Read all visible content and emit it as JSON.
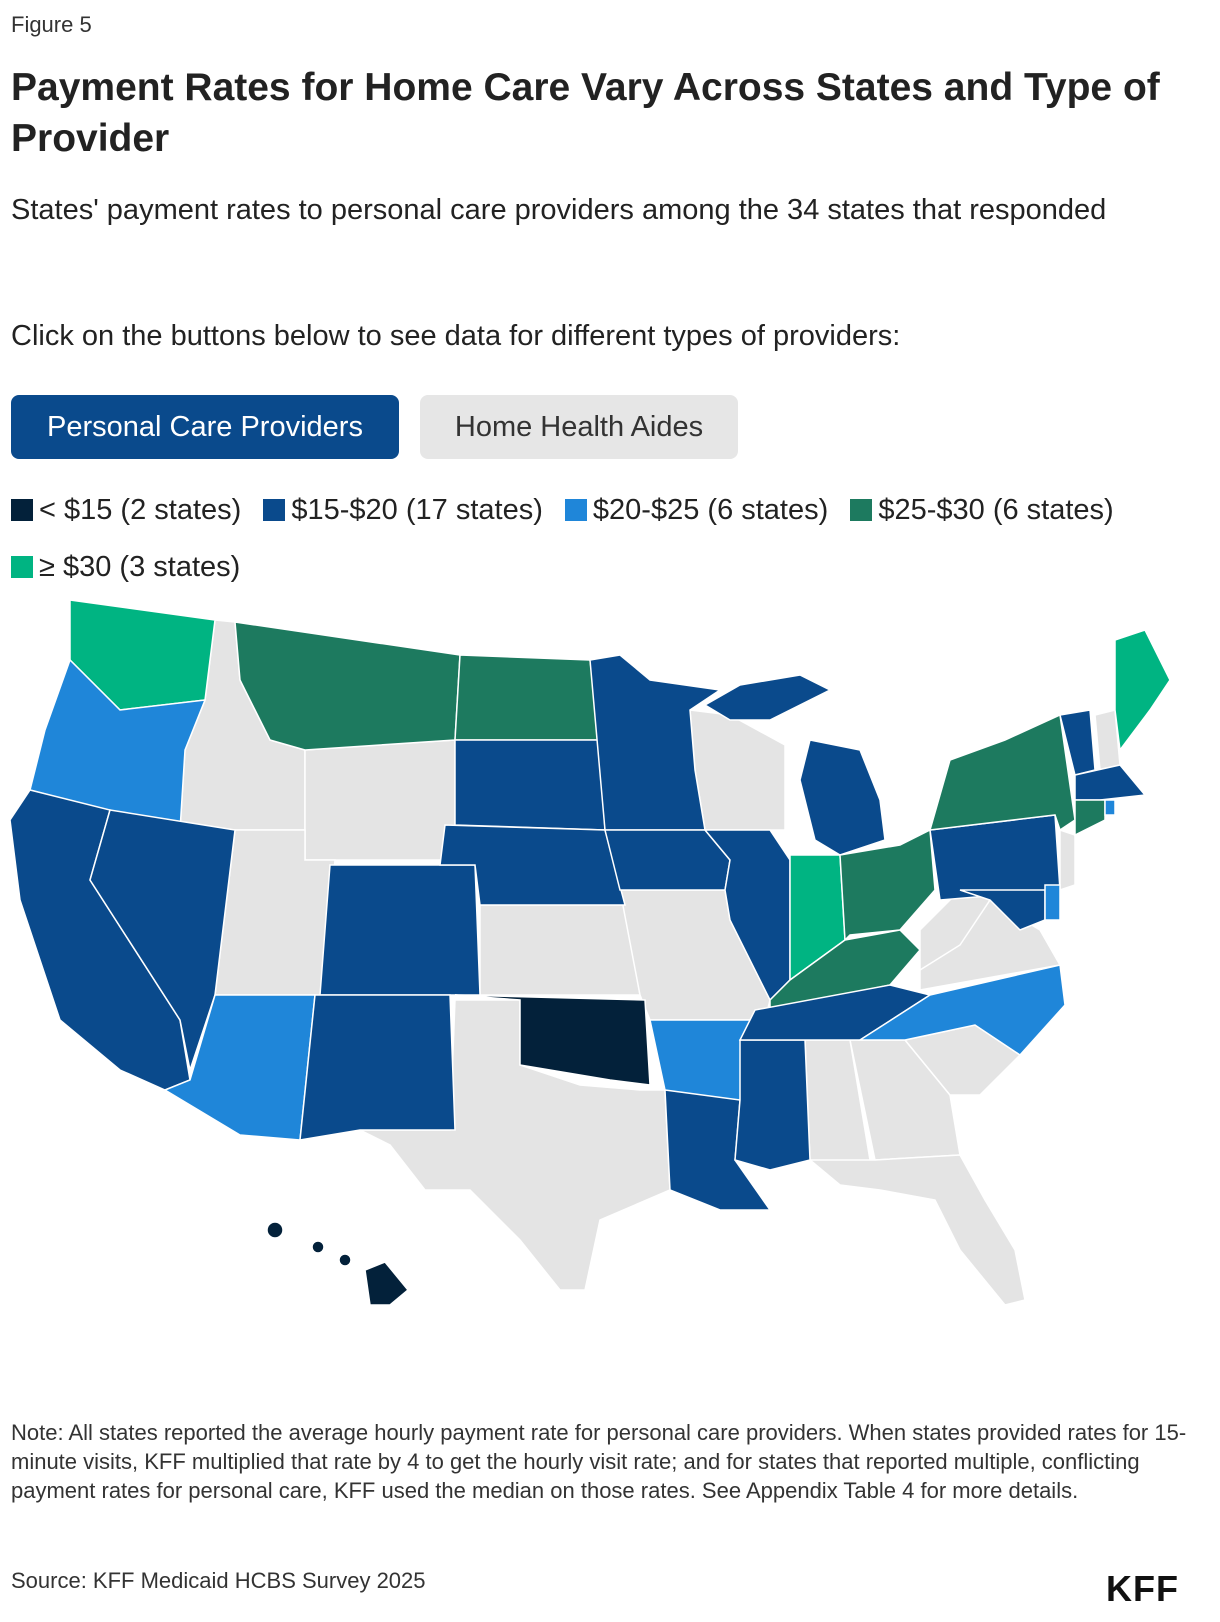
{
  "figure_label": "Figure 5",
  "title": "Payment Rates for Home Care Vary Across States and Type of Provider",
  "subtitle": "States' payment rates to personal care providers among the 34 states that responded",
  "instruction": "Click on the buttons below to see data for different types of providers:",
  "buttons": {
    "personal_care": "Personal Care Providers",
    "home_health": "Home Health Aides"
  },
  "legend": [
    {
      "label": "< $15 (2 states)",
      "color": "#03213a"
    },
    {
      "label": "$15-$20 (17 states)",
      "color": "#0a4a8c"
    },
    {
      "label": "$20-$25 (6 states)",
      "color": "#1f86d9"
    },
    {
      "label": "$25-$30 (6 states)",
      "color": "#1d7a5f"
    },
    {
      "label": "≥ $30 (3 states)",
      "color": "#00b482"
    }
  ],
  "no_data_color": "#e4e4e4",
  "map_data": {
    "selected_provider": "Personal Care Providers",
    "states": {
      "WA": "≥ $30",
      "ME": "≥ $30",
      "IN": "≥ $30",
      "MT": "$25-$30",
      "ND": "$25-$30",
      "NY": "$25-$30",
      "CT": "$25-$30",
      "OH": "$25-$30",
      "KY": "$25-$30",
      "OR": "$20-$25",
      "AZ": "$20-$25",
      "AR": "$20-$25",
      "NC": "$20-$25",
      "DE": "$20-$25",
      "RI": "$20-$25",
      "CA": "$15-$20",
      "NV": "$15-$20",
      "CO": "$15-$20",
      "NM": "$15-$20",
      "SD": "$15-$20",
      "NE": "$15-$20",
      "MN": "$15-$20",
      "IA": "$15-$20",
      "IL": "$15-$20",
      "MI": "$15-$20",
      "PA": "$15-$20",
      "MD": "$15-$20",
      "VT": "$15-$20",
      "MA": "$15-$20",
      "TN": "$15-$20",
      "MS": "$15-$20",
      "LA": "$15-$20",
      "OK": "< $15",
      "HI": "< $15"
    }
  },
  "note": "Note: All states reported the average hourly payment rate for personal care providers. When states provided rates for 15-minute visits, KFF multiplied that rate by 4 to get the hourly visit rate; and for states that reported multiple, conflicting payment rates for personal care, KFF used the median on those rates. See Appendix Table 4 for more details.",
  "source": "Source: KFF Medicaid HCBS Survey 2025",
  "logo": "KFF"
}
